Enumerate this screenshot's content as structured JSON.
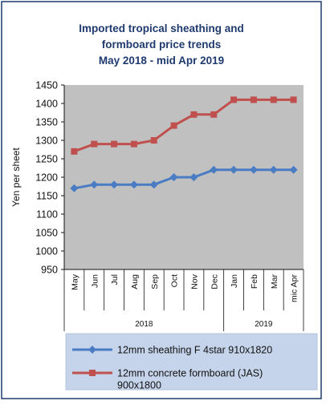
{
  "chart_data": {
    "type": "line",
    "title": [
      "Imported tropical sheathing and",
      "formboard price trends",
      "May 2018 - mid Apr 2019"
    ],
    "ylabel": "Yen per sheet",
    "categories": [
      "May",
      "Jun",
      "Jul",
      "Aug",
      "Sep",
      "Oct",
      "Nov",
      "Dec",
      "Jan",
      "Feb",
      "Mar",
      "mic Apr"
    ],
    "year_groups": [
      {
        "label": "2018",
        "start": 0,
        "end": 7
      },
      {
        "label": "2019",
        "start": 8,
        "end": 11
      }
    ],
    "ylim": [
      950,
      1450
    ],
    "yticks": [
      950,
      1000,
      1050,
      1100,
      1150,
      1200,
      1250,
      1300,
      1350,
      1400,
      1450
    ],
    "grid": "none",
    "legend_position": "bottom",
    "series": [
      {
        "name": "12mm sheathing F 4star 910x1820",
        "color": "#4a7cc4",
        "marker": "diamond",
        "values": [
          1170,
          1180,
          1180,
          1180,
          1180,
          1200,
          1200,
          1220,
          1220,
          1220,
          1220,
          1220
        ]
      },
      {
        "name": "12mm concrete formboard (JAS) 900x1800",
        "legend_lines": [
          "12mm concrete formboard (JAS)",
          "900x1800"
        ],
        "color": "#c0504d",
        "marker": "square",
        "values": [
          1270,
          1290,
          1290,
          1290,
          1300,
          1340,
          1370,
          1370,
          1410,
          1410,
          1410,
          1410
        ]
      }
    ],
    "colors": {
      "plot_background": "#c0c0c0",
      "frame": "#1f3a6e",
      "legend_background": "#c5d4ea"
    }
  }
}
